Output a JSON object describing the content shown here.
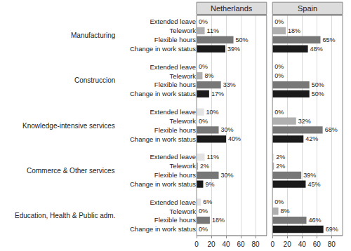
{
  "chart_data": [
    {
      "type": "bar",
      "title": "Netherlands",
      "orientation": "horizontal",
      "data_labels": true,
      "grid": true,
      "categories": [
        "Manufacturing",
        "Construccion",
        "Knowledge-intensive services",
        "Commerce & Other services",
        "Education, Health & Public adm."
      ],
      "series": [
        {
          "name": "Extended leave",
          "color": "#e3e3e3",
          "values": [
            0,
            0,
            10,
            11,
            6
          ],
          "value_labels": [
            "0%",
            "0%",
            "10%",
            "11%",
            "6%"
          ]
        },
        {
          "name": "Telework",
          "color": "#b0b0b0",
          "values": [
            11,
            8,
            0,
            2,
            0
          ],
          "value_labels": [
            "11%",
            "8%",
            "0%",
            "2%",
            "0%"
          ]
        },
        {
          "name": "Flexible hours",
          "color": "#777777",
          "values": [
            50,
            33,
            30,
            30,
            18
          ],
          "value_labels": [
            "50%",
            "33%",
            "30%",
            "30%",
            "18%"
          ]
        },
        {
          "name": "Change in work status",
          "color": "#1a1a1a",
          "values": [
            39,
            17,
            40,
            9,
            0
          ],
          "value_labels": [
            "39%",
            "17%",
            "40%",
            "9%",
            "0%"
          ]
        }
      ],
      "xlim": [
        0,
        95
      ],
      "xticks": [
        0,
        20,
        40,
        60,
        80
      ]
    },
    {
      "type": "bar",
      "title": "Spain",
      "orientation": "horizontal",
      "data_labels": true,
      "grid": true,
      "categories": [
        "Manufacturing",
        "Construccion",
        "Knowledge-intensive services",
        "Commerce & Other services",
        "Education, Health & Public adm."
      ],
      "series": [
        {
          "name": "Extended leave",
          "color": "#e3e3e3",
          "values": [
            0,
            0,
            0,
            2,
            0
          ],
          "value_labels": [
            "0%",
            "0%",
            "0%",
            "2%",
            "0%"
          ]
        },
        {
          "name": "Telework",
          "color": "#b0b0b0",
          "values": [
            18,
            0,
            32,
            2,
            8
          ],
          "value_labels": [
            "18%",
            "0%",
            "32%",
            "2%",
            "8%"
          ]
        },
        {
          "name": "Flexible hours",
          "color": "#777777",
          "values": [
            65,
            50,
            68,
            39,
            46
          ],
          "value_labels": [
            "65%",
            "50%",
            "68%",
            "39%",
            "46%"
          ]
        },
        {
          "name": "Change in work status",
          "color": "#1a1a1a",
          "values": [
            48,
            50,
            42,
            45,
            69
          ],
          "value_labels": [
            "48%",
            "50%",
            "42%",
            "45%",
            "69%"
          ]
        }
      ],
      "xlim": [
        0,
        95
      ],
      "xticks": [
        0,
        20,
        40,
        60,
        80
      ]
    }
  ]
}
